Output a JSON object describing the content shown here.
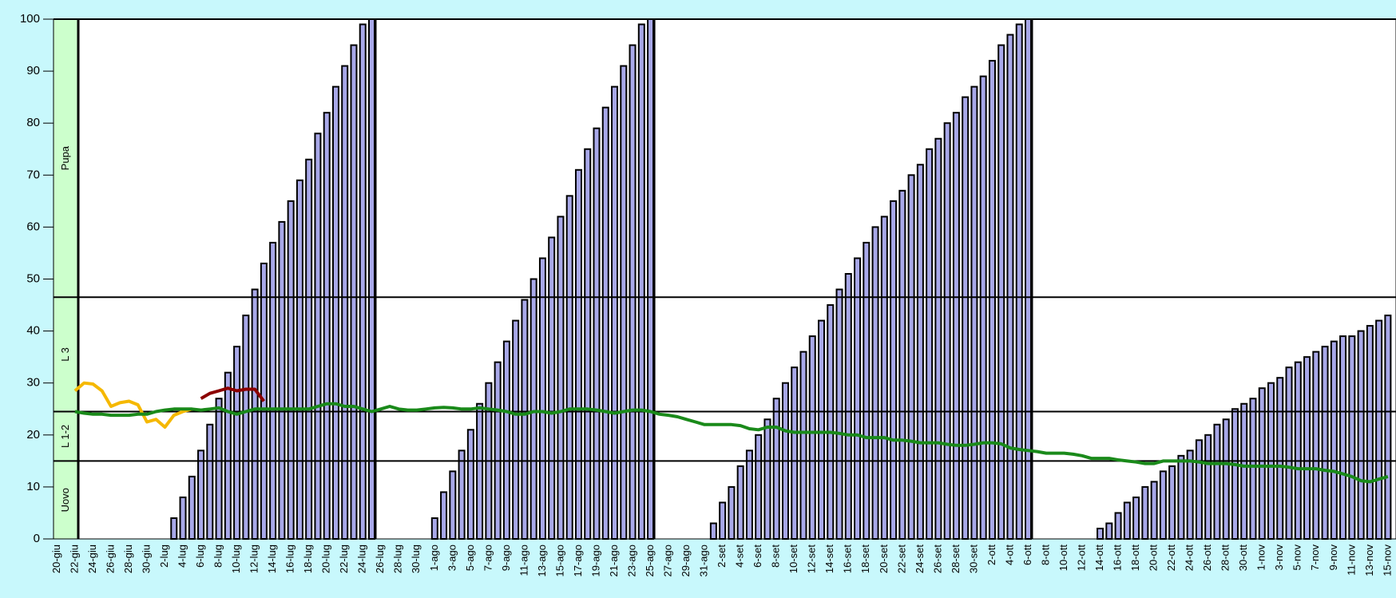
{
  "chart_data": {
    "type": "bar",
    "categories": [
      "20-giu",
      null,
      "22-giu",
      null,
      "24-giu",
      null,
      "26-giu",
      null,
      "28-giu",
      null,
      "30-giu",
      null,
      "2-lug",
      null,
      "4-lug",
      null,
      "6-lug",
      null,
      "8-lug",
      null,
      "10-lug",
      null,
      "12-lug",
      null,
      "14-lug",
      null,
      "16-lug",
      null,
      "18-lug",
      null,
      "20-lug",
      null,
      "22-lug",
      null,
      "24-lug",
      null,
      "26-lug",
      null,
      "28-lug",
      null,
      "30-lug",
      null,
      "1-ago",
      null,
      "3-ago",
      null,
      "5-ago",
      null,
      "7-ago",
      null,
      "9-ago",
      null,
      "11-ago",
      null,
      "13-ago",
      null,
      "15-ago",
      null,
      "17-ago",
      null,
      "19-ago",
      null,
      "21-ago",
      null,
      "23-ago",
      null,
      "25-ago",
      null,
      "27-ago",
      null,
      "29-ago",
      null,
      "31-ago",
      null,
      "2-set",
      null,
      "4-set",
      null,
      "6-set",
      null,
      "8-set",
      null,
      "10-set",
      null,
      "12-set",
      null,
      "14-set",
      null,
      "16-set",
      null,
      "18-set",
      null,
      "20-set",
      null,
      "22-set",
      null,
      "24-set",
      null,
      "26-set",
      null,
      "28-set",
      null,
      "30-set",
      null,
      "2-ott",
      null,
      "4-ott",
      null,
      "6-ott",
      null,
      "8-ott",
      null,
      "10-ott",
      null,
      "12-ott",
      null,
      "14-ott",
      null,
      "16-ott",
      null,
      "18-ott",
      null,
      "20-ott",
      null,
      "22-ott",
      null,
      "24-ott",
      null,
      "26-ott",
      null,
      "28-ott",
      null,
      "30-ott",
      null,
      "1-nov",
      null,
      "3-nov",
      null,
      "5-nov",
      null,
      "7-nov",
      null,
      "9-nov",
      null,
      "11-nov",
      null,
      "13-nov",
      null,
      "15-nov"
    ],
    "series": [
      {
        "type": "bar",
        "color": "#a8a8e8",
        "values": [
          0,
          0,
          0,
          0,
          0,
          0,
          0,
          0,
          0,
          0,
          0,
          0,
          0,
          4,
          8,
          12,
          17,
          22,
          27,
          32,
          37,
          43,
          48,
          53,
          57,
          61,
          65,
          69,
          73,
          78,
          82,
          87,
          91,
          95,
          99,
          100,
          0,
          0,
          0,
          0,
          0,
          0,
          4,
          9,
          13,
          17,
          21,
          26,
          30,
          34,
          38,
          42,
          46,
          50,
          54,
          58,
          62,
          66,
          71,
          75,
          79,
          83,
          87,
          91,
          95,
          99,
          100,
          0,
          0,
          0,
          0,
          0,
          0,
          3,
          7,
          10,
          14,
          17,
          20,
          23,
          27,
          30,
          33,
          36,
          39,
          42,
          45,
          48,
          51,
          54,
          57,
          60,
          62,
          65,
          67,
          70,
          72,
          75,
          77,
          80,
          82,
          85,
          87,
          89,
          92,
          95,
          97,
          99,
          100,
          0,
          0,
          0,
          0,
          0,
          0,
          0,
          2,
          3,
          5,
          7,
          8,
          10,
          11,
          13,
          14,
          16,
          17,
          19,
          20,
          22,
          23,
          25,
          26,
          27,
          29,
          30,
          31,
          33,
          34,
          35,
          36,
          37,
          38,
          39,
          39,
          40,
          41,
          42,
          43
        ]
      },
      {
        "type": "line",
        "color": "#f5b800",
        "values": [
          null,
          null,
          28.5,
          30,
          29.8,
          28.5,
          25.5,
          26.2,
          26.5,
          25.8,
          22.5,
          23,
          21.5,
          23.8,
          24.5,
          25,
          null,
          null,
          null,
          null,
          null,
          null,
          null,
          null,
          null,
          null,
          null,
          null,
          null,
          null,
          null,
          null,
          null,
          null,
          null,
          null,
          null,
          null,
          null,
          null,
          null,
          null,
          null,
          null,
          null,
          null,
          null,
          null,
          null,
          null,
          null,
          null,
          null,
          null,
          null,
          null,
          null,
          null,
          null,
          null,
          null,
          null,
          null,
          null,
          null,
          null,
          null,
          null,
          null,
          null,
          null,
          null,
          null,
          null,
          null,
          null,
          null,
          null,
          null,
          null,
          null,
          null,
          null,
          null,
          null,
          null,
          null,
          null,
          null,
          null,
          null,
          null,
          null,
          null,
          null,
          null,
          null,
          null,
          null,
          null,
          null,
          null,
          null,
          null,
          null,
          null,
          null,
          null,
          null,
          null,
          null,
          null,
          null,
          null,
          null,
          null,
          null,
          null,
          null,
          null,
          null,
          null,
          null,
          null,
          null,
          null,
          null,
          null,
          null,
          null,
          null,
          null,
          null,
          null,
          null,
          null,
          null,
          null,
          null,
          null,
          null,
          null,
          null,
          null,
          null,
          null,
          null,
          null,
          null
        ]
      },
      {
        "type": "line",
        "color": "#8b0000",
        "values": [
          null,
          null,
          null,
          null,
          null,
          null,
          null,
          null,
          null,
          null,
          null,
          null,
          null,
          null,
          null,
          null,
          27,
          28,
          28.5,
          29,
          28.5,
          28.8,
          28.8,
          26.5,
          null,
          null,
          null,
          null,
          null,
          null,
          null,
          null,
          null,
          null,
          null,
          null,
          null,
          null,
          null,
          null,
          null,
          null,
          null,
          null,
          null,
          null,
          null,
          null,
          null,
          null,
          null,
          null,
          null,
          null,
          null,
          null,
          null,
          null,
          null,
          null,
          null,
          null,
          null,
          null,
          null,
          null,
          null,
          null,
          null,
          null,
          null,
          null,
          null,
          null,
          null,
          null,
          null,
          null,
          null,
          null,
          null,
          null,
          null,
          null,
          null,
          null,
          null,
          null,
          null,
          null,
          null,
          null,
          null,
          null,
          null,
          null,
          null,
          null,
          null,
          null,
          null,
          null,
          null,
          null,
          null,
          null,
          null,
          null,
          null,
          null,
          null,
          null,
          null,
          null,
          null,
          null,
          null,
          null,
          null,
          null,
          null,
          null,
          null,
          null,
          null,
          null,
          null,
          null,
          null,
          null,
          null,
          null,
          null,
          null,
          null,
          null,
          null,
          null,
          null,
          null,
          null,
          null,
          null,
          null,
          null,
          null,
          null,
          null,
          null
        ]
      },
      {
        "type": "line",
        "color": "#1a8a1a",
        "values": [
          null,
          null,
          24.5,
          24.2,
          24,
          24,
          23.8,
          23.8,
          23.8,
          24,
          24,
          24.5,
          24.8,
          25,
          25,
          25,
          24.8,
          25,
          25.2,
          24.5,
          24,
          24.5,
          25,
          25,
          25,
          25,
          25,
          25,
          25,
          25.5,
          26,
          26,
          25.5,
          25.5,
          25,
          24.5,
          25,
          25.5,
          25,
          24.8,
          24.8,
          25,
          25.2,
          25.3,
          25.2,
          25,
          25,
          25.2,
          25,
          24.8,
          24.5,
          24,
          24,
          24.5,
          24.5,
          24.2,
          24.5,
          25,
          25,
          25,
          24.8,
          24.5,
          24.2,
          24.5,
          24.8,
          24.8,
          24.5,
          24,
          23.8,
          23.5,
          23,
          22.5,
          22,
          22,
          22,
          22,
          21.8,
          21.2,
          21,
          21.5,
          21.5,
          20.8,
          20.5,
          20.5,
          20.5,
          20.5,
          20.5,
          20.3,
          20,
          20,
          19.5,
          19.5,
          19.5,
          19,
          19,
          18.8,
          18.5,
          18.5,
          18.5,
          18.2,
          18,
          18,
          18.2,
          18.5,
          18.5,
          18.3,
          17.5,
          17.2,
          17,
          16.8,
          16.5,
          16.5,
          16.5,
          16.3,
          16,
          15.5,
          15.5,
          15.5,
          15.2,
          15,
          14.8,
          14.5,
          14.5,
          15,
          15,
          15,
          15,
          14.8,
          14.5,
          14.5,
          14.5,
          14.3,
          14,
          14,
          14,
          14,
          14,
          13.8,
          13.5,
          13.5,
          13.5,
          13.2,
          13,
          12.5,
          12,
          11.2,
          11,
          11.5,
          12
        ]
      }
    ],
    "stages": [
      {
        "label": "Uovo",
        "upper": 15
      },
      {
        "label": "L 1-2",
        "upper": 24.5
      },
      {
        "label": "L 3",
        "upper": 46.5
      },
      {
        "label": "Pupa",
        "upper": 100
      }
    ],
    "ylim": [
      0,
      100
    ],
    "yticks": [
      0,
      10,
      20,
      30,
      40,
      50,
      60,
      70,
      80,
      90,
      100
    ]
  }
}
